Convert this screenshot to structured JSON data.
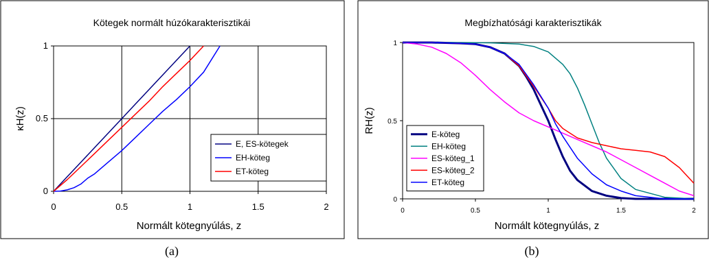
{
  "chart_data": [
    {
      "type": "line",
      "title": "Kötegek normált húzókarakterisztikái",
      "xlabel": "Normált kötegnyúlás, z",
      "ylabel": "κH(z)",
      "xlim": [
        0,
        2
      ],
      "ylim": [
        0,
        1
      ],
      "x_ticks": [
        "0",
        "0.5",
        "1",
        "1.5",
        "2"
      ],
      "y_ticks": [
        "0",
        "0.5",
        "1"
      ],
      "grid": true,
      "legend_position": "right",
      "series": [
        {
          "name": "E, ES-kötegek",
          "color": "#000080",
          "x": [
            0,
            0.1,
            0.2,
            0.3,
            0.4,
            0.5,
            0.6,
            0.7,
            0.8,
            0.9,
            1.0
          ],
          "y": [
            0,
            0.1,
            0.2,
            0.3,
            0.4,
            0.5,
            0.6,
            0.7,
            0.8,
            0.9,
            1.0
          ]
        },
        {
          "name": "EH-köteg",
          "color": "#0000ff",
          "x": [
            0,
            0.05,
            0.1,
            0.15,
            0.2,
            0.25,
            0.3,
            0.4,
            0.5,
            0.6,
            0.7,
            0.8,
            0.9,
            1.0,
            1.1,
            1.22
          ],
          "y": [
            0,
            0.002,
            0.01,
            0.025,
            0.05,
            0.09,
            0.12,
            0.2,
            0.28,
            0.37,
            0.46,
            0.55,
            0.63,
            0.72,
            0.82,
            1.0
          ]
        },
        {
          "name": "ET-köteg",
          "color": "#ff0000",
          "x": [
            0,
            0.1,
            0.2,
            0.3,
            0.4,
            0.5,
            0.6,
            0.7,
            0.8,
            0.9,
            1.0,
            1.1
          ],
          "y": [
            0,
            0.08,
            0.17,
            0.26,
            0.35,
            0.44,
            0.53,
            0.62,
            0.72,
            0.81,
            0.9,
            1.0
          ]
        }
      ]
    },
    {
      "type": "line",
      "title": "Megbízhatósági karakterisztikák",
      "xlabel": "Normált kötegnyúlás, z",
      "ylabel": "RH(z)",
      "xlim": [
        0,
        2
      ],
      "ylim": [
        0,
        1
      ],
      "x_ticks": [
        "0",
        "0.5",
        "1",
        "1.5",
        "2"
      ],
      "y_ticks": [
        "0",
        "0.5",
        "1"
      ],
      "grid": false,
      "legend_position": "left",
      "series": [
        {
          "name": "E-köteg",
          "color": "#000080",
          "bold": true,
          "x": [
            0,
            0.2,
            0.4,
            0.5,
            0.6,
            0.7,
            0.8,
            0.85,
            0.9,
            0.95,
            1.0,
            1.05,
            1.1,
            1.15,
            1.2,
            1.3,
            1.4,
            1.5,
            1.6,
            2.0
          ],
          "y": [
            1.0,
            1.0,
            0.995,
            0.99,
            0.97,
            0.93,
            0.85,
            0.78,
            0.7,
            0.6,
            0.5,
            0.38,
            0.27,
            0.18,
            0.12,
            0.05,
            0.02,
            0.005,
            0.0,
            0.0
          ]
        },
        {
          "name": "EH-köteg",
          "color": "#008080",
          "x": [
            0,
            0.4,
            0.6,
            0.8,
            0.9,
            1.0,
            1.1,
            1.15,
            1.2,
            1.25,
            1.3,
            1.35,
            1.4,
            1.5,
            1.6,
            1.8,
            2.0
          ],
          "y": [
            1.0,
            1.0,
            0.998,
            0.99,
            0.975,
            0.94,
            0.86,
            0.8,
            0.71,
            0.6,
            0.48,
            0.36,
            0.26,
            0.13,
            0.06,
            0.01,
            0.0
          ]
        },
        {
          "name": "ES-köteg_1",
          "color": "#ff00ff",
          "x": [
            0,
            0.1,
            0.2,
            0.3,
            0.4,
            0.5,
            0.6,
            0.7,
            0.8,
            0.9,
            1.0,
            1.1,
            1.2,
            1.3,
            1.4,
            1.5,
            1.6,
            1.7,
            1.8,
            1.9,
            2.0
          ],
          "y": [
            1.0,
            0.99,
            0.97,
            0.93,
            0.87,
            0.79,
            0.7,
            0.62,
            0.55,
            0.5,
            0.46,
            0.42,
            0.38,
            0.34,
            0.3,
            0.25,
            0.2,
            0.15,
            0.1,
            0.05,
            0.02
          ]
        },
        {
          "name": "ES-köteg_2",
          "color": "#ff0000",
          "x": [
            0,
            0.2,
            0.4,
            0.5,
            0.6,
            0.7,
            0.8,
            0.9,
            1.0,
            1.05,
            1.1,
            1.2,
            1.3,
            1.4,
            1.5,
            1.6,
            1.7,
            1.8,
            1.9,
            2.0
          ],
          "y": [
            1.0,
            1.0,
            0.995,
            0.99,
            0.97,
            0.93,
            0.85,
            0.72,
            0.58,
            0.5,
            0.45,
            0.39,
            0.36,
            0.34,
            0.32,
            0.31,
            0.3,
            0.27,
            0.2,
            0.1
          ]
        },
        {
          "name": "ET-köteg",
          "color": "#0000ff",
          "x": [
            0,
            0.2,
            0.4,
            0.5,
            0.6,
            0.7,
            0.8,
            0.9,
            1.0,
            1.05,
            1.1,
            1.15,
            1.2,
            1.3,
            1.4,
            1.5,
            1.6,
            1.7,
            1.8,
            2.0
          ],
          "y": [
            1.0,
            1.0,
            0.995,
            0.99,
            0.97,
            0.93,
            0.86,
            0.73,
            0.58,
            0.48,
            0.4,
            0.33,
            0.26,
            0.16,
            0.09,
            0.05,
            0.02,
            0.01,
            0.0,
            0.0
          ]
        }
      ]
    }
  ],
  "captions": [
    "(a)",
    "(b)"
  ]
}
